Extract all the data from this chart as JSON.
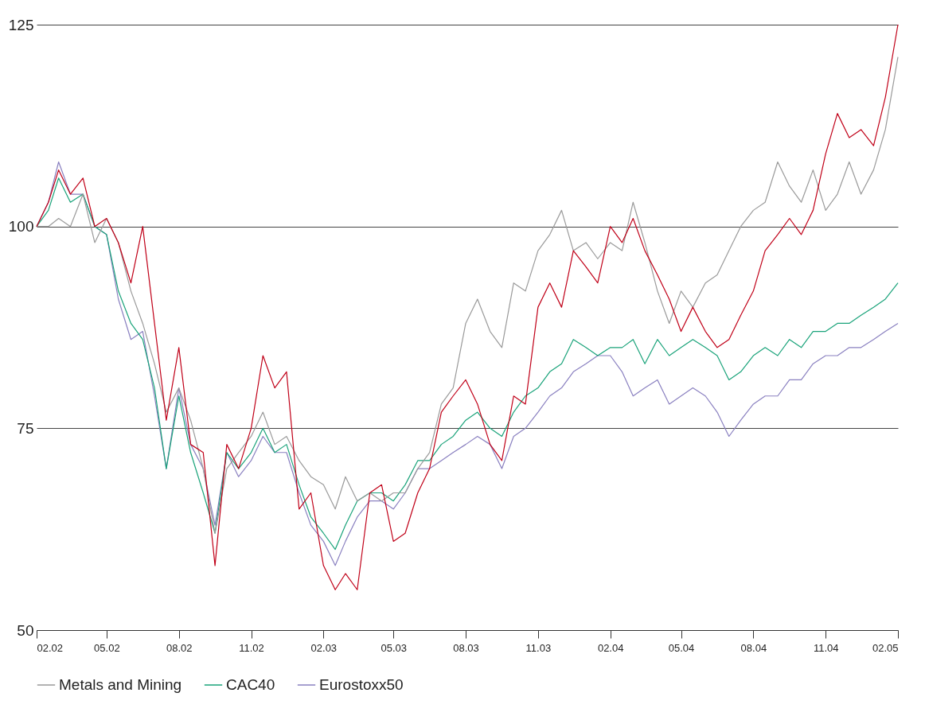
{
  "chart_data": {
    "type": "line",
    "x": [
      "2002-02-01",
      "2002-02-16",
      "2002-03-01",
      "2002-03-16",
      "2002-04-01",
      "2002-04-16",
      "2002-05-01",
      "2002-05-16",
      "2002-06-01",
      "2002-06-16",
      "2002-07-01",
      "2002-07-16",
      "2002-08-01",
      "2002-08-16",
      "2002-09-01",
      "2002-09-16",
      "2002-10-01",
      "2002-10-16",
      "2002-11-01",
      "2002-11-16",
      "2002-12-01",
      "2002-12-16",
      "2003-01-01",
      "2003-01-16",
      "2003-02-01",
      "2003-02-16",
      "2003-03-01",
      "2003-03-16",
      "2003-04-01",
      "2003-04-16",
      "2003-05-01",
      "2003-05-16",
      "2003-06-01",
      "2003-06-16",
      "2003-07-01",
      "2003-07-16",
      "2003-08-01",
      "2003-08-16",
      "2003-09-01",
      "2003-09-16",
      "2003-10-01",
      "2003-10-16",
      "2003-11-01",
      "2003-11-16",
      "2003-12-01",
      "2003-12-16",
      "2004-01-01",
      "2004-01-16",
      "2004-02-01",
      "2004-02-16",
      "2004-03-01",
      "2004-03-16",
      "2004-04-01",
      "2004-04-16",
      "2004-05-01",
      "2004-05-16",
      "2004-06-01",
      "2004-06-16",
      "2004-07-01",
      "2004-07-16",
      "2004-08-01",
      "2004-08-16",
      "2004-09-01",
      "2004-09-16",
      "2004-10-01",
      "2004-10-16",
      "2004-11-01",
      "2004-11-16",
      "2004-12-01",
      "2004-12-16",
      "2005-01-01",
      "2005-01-16",
      "2005-02-01"
    ],
    "series": [
      {
        "color": "#c00018",
        "values": [
          100,
          103,
          107,
          104,
          106,
          100,
          101,
          98,
          93,
          100,
          88,
          76,
          85,
          73,
          72,
          58,
          73,
          70,
          75,
          84,
          80,
          82,
          65,
          67,
          58,
          55,
          57,
          55,
          67,
          68,
          61,
          62,
          67,
          70,
          77,
          79,
          81,
          78,
          73,
          71,
          79,
          78,
          90,
          93,
          90,
          97,
          95,
          93,
          100,
          98,
          101,
          97,
          94,
          91,
          87,
          90,
          87,
          85,
          86,
          89,
          92,
          97,
          99,
          101,
          99,
          102,
          109,
          114,
          111,
          112,
          110,
          116,
          125
        ]
      },
      {
        "name": "Metals and Mining",
        "color": "#9a9a9a",
        "values": [
          100,
          100,
          101,
          100,
          104,
          98,
          101,
          98,
          92,
          88,
          83,
          77,
          80,
          76,
          70,
          62,
          70,
          72,
          74,
          77,
          73,
          74,
          71,
          69,
          68,
          65,
          69,
          66,
          67,
          66,
          67,
          67,
          70,
          72,
          78,
          80,
          88,
          91,
          87,
          85,
          93,
          92,
          97,
          99,
          102,
          97,
          98,
          96,
          98,
          97,
          103,
          98,
          92,
          88,
          92,
          90,
          93,
          94,
          97,
          100,
          102,
          103,
          108,
          105,
          103,
          107,
          102,
          104,
          108,
          104,
          107,
          112,
          121
        ]
      },
      {
        "name": "CAC40",
        "color": "#1aa37a",
        "values": [
          100,
          102,
          106,
          103,
          104,
          100,
          99,
          92,
          88,
          86,
          80,
          70,
          79,
          72,
          67,
          62,
          72,
          70,
          72,
          75,
          72,
          73,
          68,
          64,
          62,
          60,
          63,
          66,
          67,
          67,
          66,
          68,
          71,
          71,
          73,
          74,
          76,
          77,
          75,
          74,
          77,
          79,
          80,
          82,
          83,
          86,
          85,
          84,
          85,
          85,
          86,
          83,
          86,
          84,
          85,
          86,
          85,
          84,
          81,
          82,
          84,
          85,
          84,
          86,
          85,
          87,
          87,
          88,
          88,
          89,
          90,
          91,
          93
        ]
      },
      {
        "name": "Eurostoxx50",
        "color": "#8a80c0",
        "values": [
          100,
          103,
          108,
          104,
          104,
          100,
          99,
          91,
          86,
          87,
          79,
          70,
          80,
          73,
          70,
          63,
          72,
          69,
          71,
          74,
          72,
          72,
          67,
          63,
          61,
          58,
          61,
          64,
          66,
          66,
          65,
          67,
          70,
          70,
          71,
          72,
          73,
          74,
          73,
          70,
          74,
          75,
          77,
          79,
          80,
          82,
          83,
          84,
          84,
          82,
          79,
          80,
          81,
          78,
          79,
          80,
          79,
          77,
          74,
          76,
          78,
          79,
          79,
          81,
          81,
          83,
          84,
          84,
          85,
          85,
          86,
          87,
          88
        ]
      }
    ],
    "xlim": [
      "2002-02-01",
      "2005-02-01"
    ],
    "xticks": [
      {
        "value": "2002-02-01",
        "label": "02.02"
      },
      {
        "value": "2002-05-01",
        "label": "05.02"
      },
      {
        "value": "2002-08-01",
        "label": "08.02"
      },
      {
        "value": "2002-11-01",
        "label": "11.02"
      },
      {
        "value": "2003-02-01",
        "label": "02.03"
      },
      {
        "value": "2003-05-01",
        "label": "05.03"
      },
      {
        "value": "2003-08-01",
        "label": "08.03"
      },
      {
        "value": "2003-11-01",
        "label": "11.03"
      },
      {
        "value": "2004-02-01",
        "label": "02.04"
      },
      {
        "value": "2004-05-01",
        "label": "05.04"
      },
      {
        "value": "2004-08-01",
        "label": "08.04"
      },
      {
        "value": "2004-11-01",
        "label": "11.04"
      },
      {
        "value": "2005-02-01",
        "label": "02.05"
      }
    ],
    "ylim": [
      50,
      125
    ],
    "yticks": [
      50,
      75,
      100,
      125
    ],
    "grid": "y",
    "legend": "bottom",
    "line_style": "solid"
  }
}
